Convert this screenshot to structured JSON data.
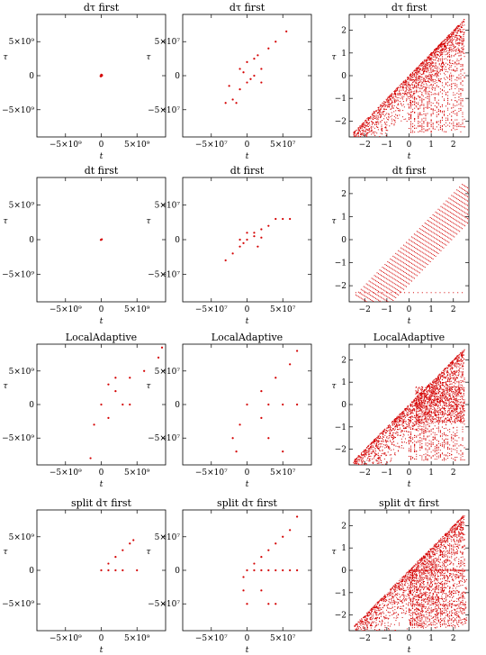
{
  "chart_data": [
    {
      "type": "scatter",
      "title": "dτ first",
      "xlabel": "t",
      "ylabel": "τ",
      "xlim": [
        -9000000000.0,
        9000000000.0
      ],
      "ylim": [
        -9000000000.0,
        9000000000.0
      ],
      "xticks": [
        {
          "v": -5000000000.0,
          "label": "−5×10⁹"
        },
        {
          "v": 0,
          "label": "0"
        },
        {
          "v": 5000000000.0,
          "label": "5×10⁹"
        }
      ],
      "yticks": [
        {
          "v": 5000000000.0,
          "label": "5×10⁹"
        },
        {
          "v": 0,
          "label": "0"
        },
        {
          "v": -5000000000.0,
          "label": "−5×10⁹"
        }
      ],
      "color": "#d40000",
      "pattern": "center",
      "points": [
        [
          0,
          0
        ],
        [
          100000000.0,
          100000000.0
        ],
        [
          -50000000.0,
          -100000000.0
        ],
        [
          0,
          150000000.0
        ],
        [
          100000000.0,
          0
        ],
        [
          -100000000.0,
          -50000000.0
        ]
      ]
    },
    {
      "type": "scatter",
      "title": "dτ first",
      "xlabel": "t",
      "ylabel": "τ",
      "xlim": [
        -90000000.0,
        90000000.0
      ],
      "ylim": [
        -90000000.0,
        90000000.0
      ],
      "xticks": [
        {
          "v": -50000000.0,
          "label": "−5×10⁷"
        },
        {
          "v": 0,
          "label": "0"
        },
        {
          "v": 50000000.0,
          "label": "5×10⁷"
        }
      ],
      "yticks": [
        {
          "v": 50000000.0,
          "label": "5×10⁷"
        },
        {
          "v": 0,
          "label": "0"
        },
        {
          "v": -50000000.0,
          "label": "−5×10⁷"
        }
      ],
      "color": "#d40000",
      "pattern": "diag",
      "points": [
        [
          -30000000.0,
          -40000000.0
        ],
        [
          -20000000.0,
          -35000000.0
        ],
        [
          -10000000.0,
          -20000000.0
        ],
        [
          0,
          -10000000.0
        ],
        [
          10000000.0,
          0
        ],
        [
          20000000.0,
          10000000.0
        ],
        [
          -10000000.0,
          10000000.0
        ],
        [
          0,
          20000000.0
        ],
        [
          10000000.0,
          25000000.0
        ],
        [
          30000000.0,
          40000000.0
        ],
        [
          40000000.0,
          50000000.0
        ],
        [
          55000000.0,
          65000000.0
        ],
        [
          -25000000.0,
          -15000000.0
        ],
        [
          5000000.0,
          -5000000.0
        ],
        [
          -5000000.0,
          5000000.0
        ],
        [
          15000000.0,
          30000000.0
        ],
        [
          -15000000.0,
          -40000000.0
        ],
        [
          20000000.0,
          -10000000.0
        ]
      ]
    },
    {
      "type": "scatter",
      "title": "dτ first",
      "xlabel": "t",
      "ylabel": "τ",
      "xlim": [
        -2.7,
        2.7
      ],
      "ylim": [
        -2.7,
        2.7
      ],
      "xticks": [
        {
          "v": -2,
          "label": "−2"
        },
        {
          "v": -1,
          "label": "−1"
        },
        {
          "v": 0,
          "label": "0"
        },
        {
          "v": 1,
          "label": "1"
        },
        {
          "v": 2,
          "label": "2"
        }
      ],
      "yticks": [
        {
          "v": 2,
          "label": "2"
        },
        {
          "v": 1,
          "label": "1"
        },
        {
          "v": 0,
          "label": "0"
        },
        {
          "v": -1,
          "label": "−1"
        },
        {
          "v": -2,
          "label": "−2"
        }
      ],
      "color": "#d40000",
      "pattern": "wedge-dense",
      "points": []
    },
    {
      "type": "scatter",
      "title": "dt first",
      "xlabel": "t",
      "ylabel": "τ",
      "xlim": [
        -9000000000.0,
        9000000000.0
      ],
      "ylim": [
        -9000000000.0,
        9000000000.0
      ],
      "xticks": [
        {
          "v": -5000000000.0,
          "label": "−5×10⁹"
        },
        {
          "v": 0,
          "label": "0"
        },
        {
          "v": 5000000000.0,
          "label": "5×10⁹"
        }
      ],
      "yticks": [
        {
          "v": 5000000000.0,
          "label": "5×10⁹"
        },
        {
          "v": 0,
          "label": "0"
        },
        {
          "v": -5000000000.0,
          "label": "−5×10⁹"
        }
      ],
      "color": "#d40000",
      "pattern": "center",
      "points": [
        [
          0,
          0
        ],
        [
          80000000.0,
          50000000.0
        ],
        [
          -60000000.0,
          -40000000.0
        ]
      ]
    },
    {
      "type": "scatter",
      "title": "dt first",
      "xlabel": "t",
      "ylabel": "τ",
      "xlim": [
        -90000000.0,
        90000000.0
      ],
      "ylim": [
        -90000000.0,
        90000000.0
      ],
      "xticks": [
        {
          "v": -50000000.0,
          "label": "−5×10⁷"
        },
        {
          "v": 0,
          "label": "0"
        },
        {
          "v": 50000000.0,
          "label": "5×10⁷"
        }
      ],
      "yticks": [
        {
          "v": 50000000.0,
          "label": "5×10⁷"
        },
        {
          "v": 0,
          "label": "0"
        },
        {
          "v": -50000000.0,
          "label": "−5×10⁷"
        }
      ],
      "color": "#d40000",
      "pattern": "diag",
      "points": [
        [
          -30000000.0,
          -30000000.0
        ],
        [
          -20000000.0,
          -20000000.0
        ],
        [
          -10000000.0,
          -10000000.0
        ],
        [
          0,
          0
        ],
        [
          10000000.0,
          10000000.0
        ],
        [
          20000000.0,
          15000000.0
        ],
        [
          30000000.0,
          20000000.0
        ],
        [
          40000000.0,
          30000000.0
        ],
        [
          50000000.0,
          30000000.0
        ],
        [
          60000000.0,
          30000000.0
        ],
        [
          -10000000.0,
          0
        ],
        [
          0,
          10000000.0
        ],
        [
          10000000.0,
          5000000.0
        ],
        [
          -5000000.0,
          -5000000.0
        ],
        [
          20000000.0,
          3000000.0
        ],
        [
          15000000.0,
          -10000000.0
        ]
      ]
    },
    {
      "type": "scatter",
      "title": "dt first",
      "xlabel": "t",
      "ylabel": "τ",
      "xlim": [
        -2.7,
        2.7
      ],
      "ylim": [
        -2.7,
        2.7
      ],
      "xticks": [
        {
          "v": -2,
          "label": "−2"
        },
        {
          "v": -1,
          "label": "−1"
        },
        {
          "v": 0,
          "label": "0"
        },
        {
          "v": 1,
          "label": "1"
        },
        {
          "v": 2,
          "label": "2"
        }
      ],
      "yticks": [
        {
          "v": 2,
          "label": "2"
        },
        {
          "v": 1,
          "label": "1"
        },
        {
          "v": 0,
          "label": "0"
        },
        {
          "v": -1,
          "label": "−1"
        },
        {
          "v": -2,
          "label": "−2"
        }
      ],
      "color": "#d40000",
      "pattern": "wedge-sparse",
      "points": []
    },
    {
      "type": "scatter",
      "title": "LocalAdaptive",
      "xlabel": "t",
      "ylabel": "τ",
      "xlim": [
        -9000000000.0,
        9000000000.0
      ],
      "ylim": [
        -9000000000.0,
        9000000000.0
      ],
      "xticks": [
        {
          "v": -5000000000.0,
          "label": "−5×10⁹"
        },
        {
          "v": 0,
          "label": "0"
        },
        {
          "v": 5000000000.0,
          "label": "5×10⁹"
        }
      ],
      "yticks": [
        {
          "v": 5000000000.0,
          "label": "5×10⁹"
        },
        {
          "v": 0,
          "label": "0"
        },
        {
          "v": -5000000000.0,
          "label": "−5×10⁹"
        }
      ],
      "color": "#d40000",
      "pattern": "fan",
      "points": [
        [
          0,
          0
        ],
        [
          2000000000.0,
          2000000000.0
        ],
        [
          4000000000.0,
          4000000000.0
        ],
        [
          6000000000.0,
          5000000000.0
        ],
        [
          8000000000.0,
          7000000000.0
        ],
        [
          8500000000.0,
          8500000000.0
        ],
        [
          3000000000.0,
          0
        ],
        [
          4000000000.0,
          0
        ],
        [
          -1000000000.0,
          -3000000000.0
        ],
        [
          -1500000000.0,
          -8000000000.0
        ],
        [
          1000000000.0,
          3000000000.0
        ],
        [
          2000000000.0,
          4000000000.0
        ],
        [
          1000000000.0,
          -2000000000.0
        ]
      ]
    },
    {
      "type": "scatter",
      "title": "LocalAdaptive",
      "xlabel": "t",
      "ylabel": "τ",
      "xlim": [
        -90000000.0,
        90000000.0
      ],
      "ylim": [
        -90000000.0,
        90000000.0
      ],
      "xticks": [
        {
          "v": -50000000.0,
          "label": "−5×10⁷"
        },
        {
          "v": 0,
          "label": "0"
        },
        {
          "v": 50000000.0,
          "label": "5×10⁷"
        }
      ],
      "yticks": [
        {
          "v": 50000000.0,
          "label": "5×10⁷"
        },
        {
          "v": 0,
          "label": "0"
        },
        {
          "v": -50000000.0,
          "label": "−5×10⁷"
        }
      ],
      "color": "#d40000",
      "pattern": "fan",
      "points": [
        [
          0,
          0
        ],
        [
          20000000.0,
          20000000.0
        ],
        [
          40000000.0,
          40000000.0
        ],
        [
          60000000.0,
          60000000.0
        ],
        [
          70000000.0,
          80000000.0
        ],
        [
          30000000.0,
          0
        ],
        [
          50000000.0,
          0
        ],
        [
          70000000.0,
          0
        ],
        [
          -20000000.0,
          -50000000.0
        ],
        [
          -15000000.0,
          -70000000.0
        ],
        [
          30000000.0,
          -50000000.0
        ],
        [
          50000000.0,
          -70000000.0
        ],
        [
          20000000.0,
          -20000000.0
        ],
        [
          -10000000.0,
          -30000000.0
        ]
      ]
    },
    {
      "type": "scatter",
      "title": "LocalAdaptive",
      "xlabel": "t",
      "ylabel": "τ",
      "xlim": [
        -2.7,
        2.7
      ],
      "ylim": [
        -2.7,
        2.7
      ],
      "xticks": [
        {
          "v": -2,
          "label": "−2"
        },
        {
          "v": -1,
          "label": "−1"
        },
        {
          "v": 0,
          "label": "0"
        },
        {
          "v": 1,
          "label": "1"
        },
        {
          "v": 2,
          "label": "2"
        }
      ],
      "yticks": [
        {
          "v": 2,
          "label": "2"
        },
        {
          "v": 1,
          "label": "1"
        },
        {
          "v": 0,
          "label": "0"
        },
        {
          "v": -1,
          "label": "−1"
        },
        {
          "v": -2,
          "label": "−2"
        }
      ],
      "color": "#d40000",
      "pattern": "wedge-dense2",
      "points": []
    },
    {
      "type": "scatter",
      "title": "split dτ first",
      "xlabel": "t",
      "ylabel": "τ",
      "xlim": [
        -9000000000.0,
        9000000000.0
      ],
      "ylim": [
        -9000000000.0,
        9000000000.0
      ],
      "xticks": [
        {
          "v": -5000000000.0,
          "label": "−5×10⁹"
        },
        {
          "v": 0,
          "label": "0"
        },
        {
          "v": 5000000000.0,
          "label": "5×10⁹"
        }
      ],
      "yticks": [
        {
          "v": 5000000000.0,
          "label": "5×10⁹"
        },
        {
          "v": 0,
          "label": "0"
        },
        {
          "v": -5000000000.0,
          "label": "−5×10⁹"
        }
      ],
      "color": "#d40000",
      "pattern": "split",
      "points": [
        [
          0,
          0
        ],
        [
          1000000000.0,
          1000000000.0
        ],
        [
          2000000000.0,
          2000000000.0
        ],
        [
          3000000000.0,
          3000000000.0
        ],
        [
          4000000000.0,
          4000000000.0
        ],
        [
          4500000000.0,
          4500000000.0
        ],
        [
          1000000000.0,
          0
        ],
        [
          2000000000.0,
          0
        ],
        [
          3000000000.0,
          0
        ],
        [
          5000000000.0,
          0
        ]
      ]
    },
    {
      "type": "scatter",
      "title": "split dτ first",
      "xlabel": "t",
      "ylabel": "τ",
      "xlim": [
        -90000000.0,
        90000000.0
      ],
      "ylim": [
        -90000000.0,
        90000000.0
      ],
      "xticks": [
        {
          "v": -50000000.0,
          "label": "−5×10⁷"
        },
        {
          "v": 0,
          "label": "0"
        },
        {
          "v": 50000000.0,
          "label": "5×10⁷"
        }
      ],
      "yticks": [
        {
          "v": 50000000.0,
          "label": "5×10⁷"
        },
        {
          "v": 0,
          "label": "0"
        },
        {
          "v": -50000000.0,
          "label": "−5×10⁷"
        }
      ],
      "color": "#d40000",
      "pattern": "split",
      "points": [
        [
          0,
          0
        ],
        [
          10000000.0,
          10000000.0
        ],
        [
          20000000.0,
          20000000.0
        ],
        [
          30000000.0,
          30000000.0
        ],
        [
          40000000.0,
          40000000.0
        ],
        [
          50000000.0,
          50000000.0
        ],
        [
          60000000.0,
          60000000.0
        ],
        [
          70000000.0,
          80000000.0
        ],
        [
          10000000.0,
          0
        ],
        [
          20000000.0,
          0
        ],
        [
          30000000.0,
          0
        ],
        [
          40000000.0,
          0
        ],
        [
          50000000.0,
          0
        ],
        [
          60000000.0,
          0
        ],
        [
          70000000.0,
          0
        ],
        [
          -5000000.0,
          -30000000.0
        ],
        [
          0,
          -50000000.0
        ],
        [
          20000000.0,
          -30000000.0
        ],
        [
          30000000.0,
          -50000000.0
        ],
        [
          40000000.0,
          -50000000.0
        ],
        [
          -5000000.0,
          -10000000.0
        ]
      ]
    },
    {
      "type": "scatter",
      "title": "split dτ first",
      "xlabel": "t",
      "ylabel": "τ",
      "xlim": [
        -2.7,
        2.7
      ],
      "ylim": [
        -2.7,
        2.7
      ],
      "xticks": [
        {
          "v": -2,
          "label": "−2"
        },
        {
          "v": -1,
          "label": "−1"
        },
        {
          "v": 0,
          "label": "0"
        },
        {
          "v": 1,
          "label": "1"
        },
        {
          "v": 2,
          "label": "2"
        }
      ],
      "yticks": [
        {
          "v": 2,
          "label": "2"
        },
        {
          "v": 1,
          "label": "1"
        },
        {
          "v": 0,
          "label": "0"
        },
        {
          "v": -1,
          "label": "−1"
        },
        {
          "v": -2,
          "label": "−2"
        }
      ],
      "color": "#d40000",
      "pattern": "wedge-split",
      "points": []
    }
  ]
}
